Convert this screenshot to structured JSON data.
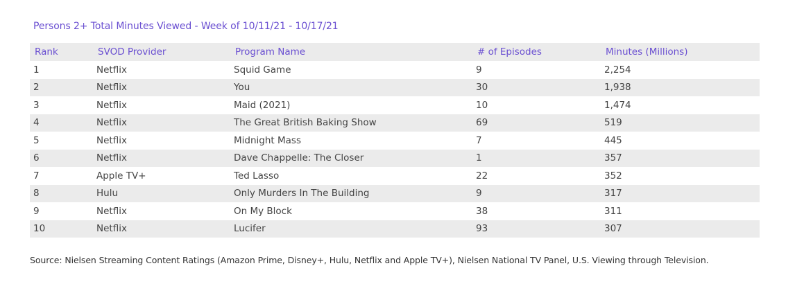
{
  "title": "Persons 2+ Total Minutes Viewed - Week of 10/11/21 - 10/17/21",
  "columns": [
    "Rank",
    "SVOD Provider",
    "Program Name",
    "# of Episodes",
    "Minutes (Millions)"
  ],
  "rows": [
    [
      "1",
      "Netflix",
      "Squid Game",
      "9",
      "2,254"
    ],
    [
      "2",
      "Netflix",
      "You",
      "30",
      "1,938"
    ],
    [
      "3",
      "Netflix",
      "Maid (2021)",
      "10",
      "1,474"
    ],
    [
      "4",
      "Netflix",
      "The Great British Baking Show",
      "69",
      "519"
    ],
    [
      "5",
      "Netflix",
      "Midnight Mass",
      "7",
      "445"
    ],
    [
      "6",
      "Netflix",
      "Dave Chappelle: The Closer",
      "1",
      "357"
    ],
    [
      "7",
      "Apple TV+",
      "Ted Lasso",
      "22",
      "352"
    ],
    [
      "8",
      "Hulu",
      "Only Murders In The Building",
      "9",
      "317"
    ],
    [
      "9",
      "Netflix",
      "On My Block",
      "38",
      "311"
    ],
    [
      "10",
      "Netflix",
      "Lucifer",
      "93",
      "307"
    ]
  ],
  "source": "Source: Nielsen Streaming Content Ratings (Amazon Prime, Disney+, Hulu, Netflix and Apple TV+), Nielsen National TV Panel, U.S. Viewing through Television.",
  "colors": {
    "accent": "#6a4fd1",
    "stripe": "#ebebeb",
    "text": "#444444"
  }
}
